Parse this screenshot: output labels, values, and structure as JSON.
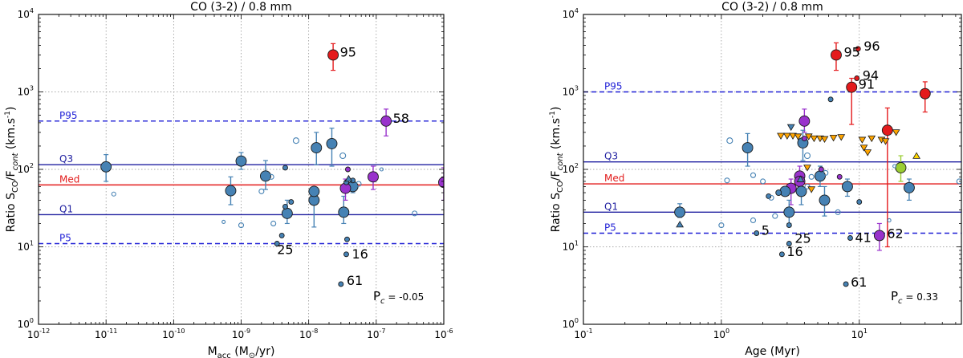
{
  "chart_data": [
    {
      "type": "scatter",
      "title": "CO (3-2) / 0.8 mm",
      "xlabel_main": "M",
      "xlabel_sub": "acc",
      "xlabel_rest": " (M",
      "xlabel_sun": "⊙",
      "xlabel_unit": "/yr)",
      "ylabel": "Ratio S_CO/F_cont (km.s^-1)",
      "xscale": "log",
      "yscale": "log",
      "xlim": [
        1e-12,
        1e-06
      ],
      "ylim": [
        1,
        10000
      ],
      "grid": true,
      "x_ticks": [
        {
          "v": 1e-12,
          "b": "10",
          "e": "-12"
        },
        {
          "v": 1e-11,
          "b": "10",
          "e": "-11"
        },
        {
          "v": 1e-10,
          "b": "10",
          "e": "-10"
        },
        {
          "v": 1e-09,
          "b": "10",
          "e": "-9"
        },
        {
          "v": 1e-08,
          "b": "10",
          "e": "-8"
        },
        {
          "v": 1e-07,
          "b": "10",
          "e": "-7"
        },
        {
          "v": 1e-06,
          "b": "10",
          "e": "-6"
        }
      ],
      "y_ticks": [
        {
          "v": 1,
          "b": "10",
          "e": "0"
        },
        {
          "v": 10,
          "b": "10",
          "e": "1"
        },
        {
          "v": 100,
          "b": "10",
          "e": "2"
        },
        {
          "v": 1000,
          "b": "10",
          "e": "3"
        },
        {
          "v": 10000,
          "b": "10",
          "e": "4"
        }
      ],
      "reference_lines": [
        {
          "name": "P95",
          "y": 420,
          "color": "#1f1fd6",
          "style": "dashed"
        },
        {
          "name": "Q3",
          "y": 115,
          "color": "#1f1fa0",
          "style": "solid"
        },
        {
          "name": "Med",
          "y": 63,
          "color": "#e21b1b",
          "style": "solid"
        },
        {
          "name": "Q1",
          "y": 26,
          "color": "#1f1fa0",
          "style": "solid"
        },
        {
          "name": "P5",
          "y": 11,
          "color": "#1f1fd6",
          "style": "dashed"
        }
      ],
      "pc_label": "P",
      "pc_sub": "c",
      "pc_value": "= -0.05",
      "points": [
        {
          "x": 1e-11,
          "y": 108,
          "s": 6.5,
          "fill": "#4682b4",
          "err": [
            70,
            155
          ]
        },
        {
          "x": 7e-10,
          "y": 53,
          "s": 6.5,
          "fill": "#4682b4",
          "err": [
            35,
            80
          ]
        },
        {
          "x": 1e-09,
          "y": 128,
          "s": 6.5,
          "fill": "#4682b4",
          "err": [
            100,
            165
          ]
        },
        {
          "x": 2.3e-09,
          "y": 82,
          "s": 6.5,
          "fill": "#4682b4",
          "err": [
            55,
            130
          ]
        },
        {
          "x": 4.8e-09,
          "y": 27,
          "s": 6.5,
          "fill": "#4682b4",
          "err": [
            20,
            40
          ]
        },
        {
          "x": 1.2e-08,
          "y": 40,
          "s": 6.5,
          "fill": "#4682b4",
          "err": [
            18,
            55
          ]
        },
        {
          "x": 1.2e-08,
          "y": 52,
          "s": 6.5,
          "fill": "#4682b4"
        },
        {
          "x": 1.3e-08,
          "y": 190,
          "s": 6.5,
          "fill": "#4682b4",
          "err": [
            115,
            300
          ]
        },
        {
          "x": 2.2e-08,
          "y": 215,
          "s": 6.5,
          "fill": "#4682b4",
          "err": [
            110,
            340
          ]
        },
        {
          "x": 3.3e-08,
          "y": 28,
          "s": 6.5,
          "fill": "#4682b4",
          "err": [
            20,
            45
          ]
        },
        {
          "x": 4.5e-08,
          "y": 60,
          "s": 6.5,
          "fill": "#4682b4",
          "err": [
            50,
            70
          ]
        },
        {
          "x": 2.3e-08,
          "y": 3000,
          "s": 6.5,
          "fill": "#e41a1c",
          "err": [
            1900,
            4200
          ],
          "label": "95",
          "lox": 2,
          "loy": -3
        },
        {
          "x": 1.4e-07,
          "y": 420,
          "s": 6.5,
          "fill": "#9932cc",
          "err": [
            270,
            600
          ],
          "label": "58",
          "lox": 2,
          "loy": -3
        },
        {
          "x": 3.5e-08,
          "y": 57,
          "s": 6.5,
          "fill": "#9932cc",
          "err": [
            40,
            75
          ]
        },
        {
          "x": 9e-08,
          "y": 80,
          "s": 6.5,
          "fill": "#9932cc",
          "err": [
            55,
            110
          ]
        },
        {
          "x": 1e-06,
          "y": 68,
          "s": 6.5,
          "fill": "#9932cc",
          "err": [
            40,
            105
          ]
        },
        {
          "x": 4.5e-09,
          "y": 105,
          "s": 3,
          "fill": "#4682b4"
        },
        {
          "x": 5.5e-09,
          "y": 38,
          "s": 3,
          "fill": "#4682b4"
        },
        {
          "x": 4.5e-09,
          "y": 33,
          "s": 3,
          "fill": "#4682b4"
        },
        {
          "x": 4e-09,
          "y": 14,
          "s": 3,
          "fill": "#4682b4"
        },
        {
          "x": 3.4e-09,
          "y": 11,
          "s": 3,
          "fill": "#4682b4",
          "label": "25",
          "lox": -3,
          "loy": 8
        },
        {
          "x": 3.7e-08,
          "y": 12.5,
          "s": 3,
          "fill": "#4682b4"
        },
        {
          "x": 3.6e-08,
          "y": 8,
          "s": 3,
          "fill": "#4682b4",
          "label": "16",
          "lox": 4,
          "loy": 0
        },
        {
          "x": 3e-08,
          "y": 3.3,
          "s": 3,
          "fill": "#4682b4",
          "label": "61",
          "lox": 4,
          "loy": -4
        },
        {
          "x": 3.6e-08,
          "y": 68,
          "s": 3,
          "fill": "#4682b4"
        },
        {
          "x": 4.5e-08,
          "y": 72,
          "s": 3,
          "fill": "#4682b4"
        },
        {
          "x": 3.8e-08,
          "y": 100,
          "s": 3,
          "fill": "#9932cc"
        },
        {
          "x": 1.3e-11,
          "y": 48,
          "s": 2.5,
          "fill": "none"
        },
        {
          "x": 5.5e-10,
          "y": 21,
          "s": 2,
          "fill": "none"
        },
        {
          "x": 1e-09,
          "y": 19,
          "s": 3,
          "fill": "none"
        },
        {
          "x": 2e-09,
          "y": 52,
          "s": 3,
          "fill": "none"
        },
        {
          "x": 2.8e-09,
          "y": 80,
          "s": 3,
          "fill": "none"
        },
        {
          "x": 3e-09,
          "y": 20,
          "s": 3,
          "fill": "none"
        },
        {
          "x": 6.5e-09,
          "y": 235,
          "s": 3.5,
          "fill": "none"
        },
        {
          "x": 3.2e-08,
          "y": 150,
          "s": 3.5,
          "fill": "none"
        },
        {
          "x": 5.5e-08,
          "y": 65,
          "s": 3,
          "fill": "none"
        },
        {
          "x": 1.2e-07,
          "y": 100,
          "s": 2,
          "fill": "none"
        },
        {
          "x": 3.7e-07,
          "y": 27,
          "s": 3,
          "fill": "none"
        }
      ],
      "triangles": [
        {
          "x": 3.9e-08,
          "y": 76,
          "dir": "up",
          "fill": "#4682b4"
        }
      ]
    },
    {
      "type": "scatter",
      "title": "CO (3-2) / 0.8 mm",
      "xlabel": "Age (Myr)",
      "ylabel": "Ratio S_CO/F_cont (km.s^-1)",
      "xscale": "log",
      "yscale": "log",
      "xlim": [
        0.1,
        55
      ],
      "ylim": [
        1,
        10000
      ],
      "grid": true,
      "x_ticks": [
        {
          "v": 0.1,
          "b": "10",
          "e": "-1"
        },
        {
          "v": 1,
          "b": "10",
          "e": "0"
        },
        {
          "v": 10,
          "b": "10",
          "e": "1"
        }
      ],
      "y_ticks": [
        {
          "v": 1,
          "b": "10",
          "e": "0"
        },
        {
          "v": 10,
          "b": "10",
          "e": "1"
        },
        {
          "v": 100,
          "b": "10",
          "e": "2"
        },
        {
          "v": 1000,
          "b": "10",
          "e": "3"
        },
        {
          "v": 10000,
          "b": "10",
          "e": "4"
        }
      ],
      "reference_lines": [
        {
          "name": "P95",
          "y": 1000,
          "color": "#1f1fd6",
          "style": "dashed"
        },
        {
          "name": "Q3",
          "y": 125,
          "color": "#1f1fa0",
          "style": "solid"
        },
        {
          "name": "Med",
          "y": 65,
          "color": "#e21b1b",
          "style": "solid"
        },
        {
          "name": "Q1",
          "y": 28,
          "color": "#1f1fa0",
          "style": "solid"
        },
        {
          "name": "P5",
          "y": 15,
          "color": "#1f1fd6",
          "style": "dashed"
        }
      ],
      "pc_label": "P",
      "pc_sub": "c",
      "pc_value": "= 0.33",
      "points": [
        {
          "x": 6.8,
          "y": 3000,
          "s": 6.5,
          "fill": "#e41a1c",
          "err": [
            1900,
            4300
          ],
          "label": "95",
          "lox": 3,
          "loy": -3
        },
        {
          "x": 9.8,
          "y": 3600,
          "s": 3,
          "fill": "#e41a1c",
          "label": "96",
          "lox": 4,
          "loy": -3
        },
        {
          "x": 9.6,
          "y": 1500,
          "s": 3,
          "fill": "#e41a1c",
          "label": "94",
          "lox": 4,
          "loy": -3
        },
        {
          "x": 8.8,
          "y": 1150,
          "s": 6.5,
          "fill": "#e41a1c",
          "err": [
            380,
            1500
          ],
          "label": "91",
          "lox": 2,
          "loy": -3
        },
        {
          "x": 30,
          "y": 950,
          "s": 6.5,
          "fill": "#e41a1c",
          "err": [
            550,
            1350
          ]
        },
        {
          "x": 16,
          "y": 320,
          "s": 6.5,
          "fill": "#e41a1c",
          "err": [
            10,
            620
          ]
        },
        {
          "x": 20,
          "y": 105,
          "s": 6.5,
          "fill": "#9acd32",
          "err": [
            70,
            150
          ]
        },
        {
          "x": 4,
          "y": 420,
          "s": 6.5,
          "fill": "#9932cc",
          "err": [
            300,
            600
          ]
        },
        {
          "x": 3.7,
          "y": 82,
          "s": 6.5,
          "fill": "#9932cc",
          "err": [
            60,
            110
          ]
        },
        {
          "x": 3.7,
          "y": 70,
          "s": 6.5,
          "fill": "#9932cc",
          "err": [
            50,
            90
          ]
        },
        {
          "x": 3.2,
          "y": 57,
          "s": 6.5,
          "fill": "#9932cc",
          "err": [
            35,
            75
          ]
        },
        {
          "x": 14,
          "y": 14,
          "s": 6.5,
          "fill": "#9932cc",
          "err": [
            9,
            20
          ],
          "label": "62",
          "lox": 3,
          "loy": -2
        },
        {
          "x": 1.55,
          "y": 190,
          "s": 6.5,
          "fill": "#4682b4",
          "err": [
            110,
            290
          ]
        },
        {
          "x": 3.9,
          "y": 220,
          "s": 6.5,
          "fill": "#4682b4",
          "err": [
            130,
            320
          ]
        },
        {
          "x": 5.2,
          "y": 82,
          "s": 6.5,
          "fill": "#4682b4",
          "err": [
            60,
            110
          ]
        },
        {
          "x": 5.6,
          "y": 40,
          "s": 6.5,
          "fill": "#4682b4",
          "err": [
            25,
            60
          ]
        },
        {
          "x": 8.2,
          "y": 60,
          "s": 6.5,
          "fill": "#4682b4",
          "err": [
            45,
            75
          ]
        },
        {
          "x": 23,
          "y": 58,
          "s": 6.5,
          "fill": "#4682b4",
          "err": [
            40,
            75
          ]
        },
        {
          "x": 0.5,
          "y": 28,
          "s": 6.5,
          "fill": "#4682b4",
          "err": [
            24,
            36
          ]
        },
        {
          "x": 3.1,
          "y": 28,
          "s": 6.5,
          "fill": "#4682b4",
          "err": [
            20,
            40
          ]
        },
        {
          "x": 3.8,
          "y": 52,
          "s": 6.5,
          "fill": "#4682b4",
          "err": [
            35,
            75
          ]
        },
        {
          "x": 2.9,
          "y": 52,
          "s": 6.5,
          "fill": "#4682b4"
        },
        {
          "x": 2.6,
          "y": 50,
          "s": 3.5,
          "fill": "#4682b4"
        },
        {
          "x": 2.2,
          "y": 45,
          "s": 3,
          "fill": "#4682b4"
        },
        {
          "x": 1.8,
          "y": 15,
          "s": 3,
          "fill": "#4682b4",
          "label": "5",
          "lox": 3,
          "loy": -3
        },
        {
          "x": 2.75,
          "y": 8,
          "s": 3,
          "fill": "#4682b4",
          "label": "16",
          "lox": 3,
          "loy": -3
        },
        {
          "x": 3.1,
          "y": 11,
          "s": 3,
          "fill": "#4682b4",
          "label": "25",
          "lox": 4,
          "loy": -6
        },
        {
          "x": 8.6,
          "y": 13,
          "s": 3,
          "fill": "#4682b4",
          "label": "41",
          "lox": 3,
          "loy": 0
        },
        {
          "x": 8,
          "y": 3.3,
          "s": 3,
          "fill": "#4682b4",
          "label": "61",
          "lox": 3,
          "loy": -2
        },
        {
          "x": 3.1,
          "y": 19,
          "s": 3,
          "fill": "#4682b4"
        },
        {
          "x": 6.2,
          "y": 800,
          "s": 3,
          "fill": "#4682b4"
        },
        {
          "x": 10,
          "y": 38,
          "s": 3,
          "fill": "#4682b4"
        },
        {
          "x": 5.3,
          "y": 100,
          "s": 3,
          "fill": "#9932cc"
        },
        {
          "x": 4,
          "y": 250,
          "s": 3,
          "fill": "#9932cc"
        },
        {
          "x": 7.2,
          "y": 80,
          "s": 3,
          "fill": "#9932cc"
        },
        {
          "x": 1.15,
          "y": 235,
          "s": 3.5,
          "fill": "none"
        },
        {
          "x": 1.1,
          "y": 72,
          "s": 3,
          "fill": "none"
        },
        {
          "x": 1.7,
          "y": 84,
          "s": 3,
          "fill": "none"
        },
        {
          "x": 2,
          "y": 70,
          "s": 3,
          "fill": "none"
        },
        {
          "x": 2.3,
          "y": 43,
          "s": 3,
          "fill": "none"
        },
        {
          "x": 2.45,
          "y": 25,
          "s": 3,
          "fill": "none"
        },
        {
          "x": 1.7,
          "y": 22,
          "s": 3,
          "fill": "none"
        },
        {
          "x": 1.0,
          "y": 19,
          "s": 3,
          "fill": "none"
        },
        {
          "x": 4.2,
          "y": 150,
          "s": 3.5,
          "fill": "none"
        },
        {
          "x": 4.5,
          "y": 80,
          "s": 3,
          "fill": "none"
        },
        {
          "x": 5.7,
          "y": 90,
          "s": 3,
          "fill": "none"
        },
        {
          "x": 4.2,
          "y": 60,
          "s": 3,
          "fill": "none"
        },
        {
          "x": 7,
          "y": 28,
          "s": 3,
          "fill": "none"
        },
        {
          "x": 18,
          "y": 110,
          "s": 2,
          "fill": "none"
        },
        {
          "x": 16.5,
          "y": 22,
          "s": 2,
          "fill": "none"
        },
        {
          "x": 53,
          "y": 70,
          "s": 3,
          "fill": "none"
        }
      ],
      "triangles": [
        {
          "x": 2.7,
          "y": 270,
          "dir": "down",
          "fill": "#ffa500"
        },
        {
          "x": 3.0,
          "y": 270,
          "dir": "down",
          "fill": "#ffa500"
        },
        {
          "x": 3.3,
          "y": 270,
          "dir": "down",
          "fill": "#ffa500"
        },
        {
          "x": 3.6,
          "y": 265,
          "dir": "down",
          "fill": "#ffa500"
        },
        {
          "x": 4.3,
          "y": 265,
          "dir": "down",
          "fill": "#ffa500"
        },
        {
          "x": 4.7,
          "y": 250,
          "dir": "down",
          "fill": "#ffa500"
        },
        {
          "x": 5.2,
          "y": 250,
          "dir": "down",
          "fill": "#ffa500"
        },
        {
          "x": 5.6,
          "y": 245,
          "dir": "down",
          "fill": "#ffa500"
        },
        {
          "x": 6.5,
          "y": 255,
          "dir": "down",
          "fill": "#ffa500"
        },
        {
          "x": 7.4,
          "y": 260,
          "dir": "down",
          "fill": "#ffa500"
        },
        {
          "x": 10.5,
          "y": 240,
          "dir": "down",
          "fill": "#ffa500"
        },
        {
          "x": 12.3,
          "y": 250,
          "dir": "down",
          "fill": "#ffa500"
        },
        {
          "x": 14.5,
          "y": 240,
          "dir": "down",
          "fill": "#ffa500"
        },
        {
          "x": 10.8,
          "y": 190,
          "dir": "down",
          "fill": "#ffa500"
        },
        {
          "x": 11.5,
          "y": 165,
          "dir": "down",
          "fill": "#ffa500"
        },
        {
          "x": 18.5,
          "y": 300,
          "dir": "down",
          "fill": "#ffa500"
        },
        {
          "x": 15.5,
          "y": 230,
          "dir": "down",
          "fill": "#ffa500"
        },
        {
          "x": 4.2,
          "y": 105,
          "dir": "down",
          "fill": "#ffa500"
        },
        {
          "x": 4.5,
          "y": 55,
          "dir": "down",
          "fill": "#ffa500"
        },
        {
          "x": 3.2,
          "y": 350,
          "dir": "down",
          "fill": "#4682b4"
        },
        {
          "x": 0.5,
          "y": 19.5,
          "dir": "up",
          "fill": "#4682b4"
        },
        {
          "x": 3.75,
          "y": 75,
          "dir": "up",
          "fill": "#4682b4"
        },
        {
          "x": 26,
          "y": 150,
          "dir": "up",
          "fill": "#ffd700"
        }
      ]
    }
  ]
}
